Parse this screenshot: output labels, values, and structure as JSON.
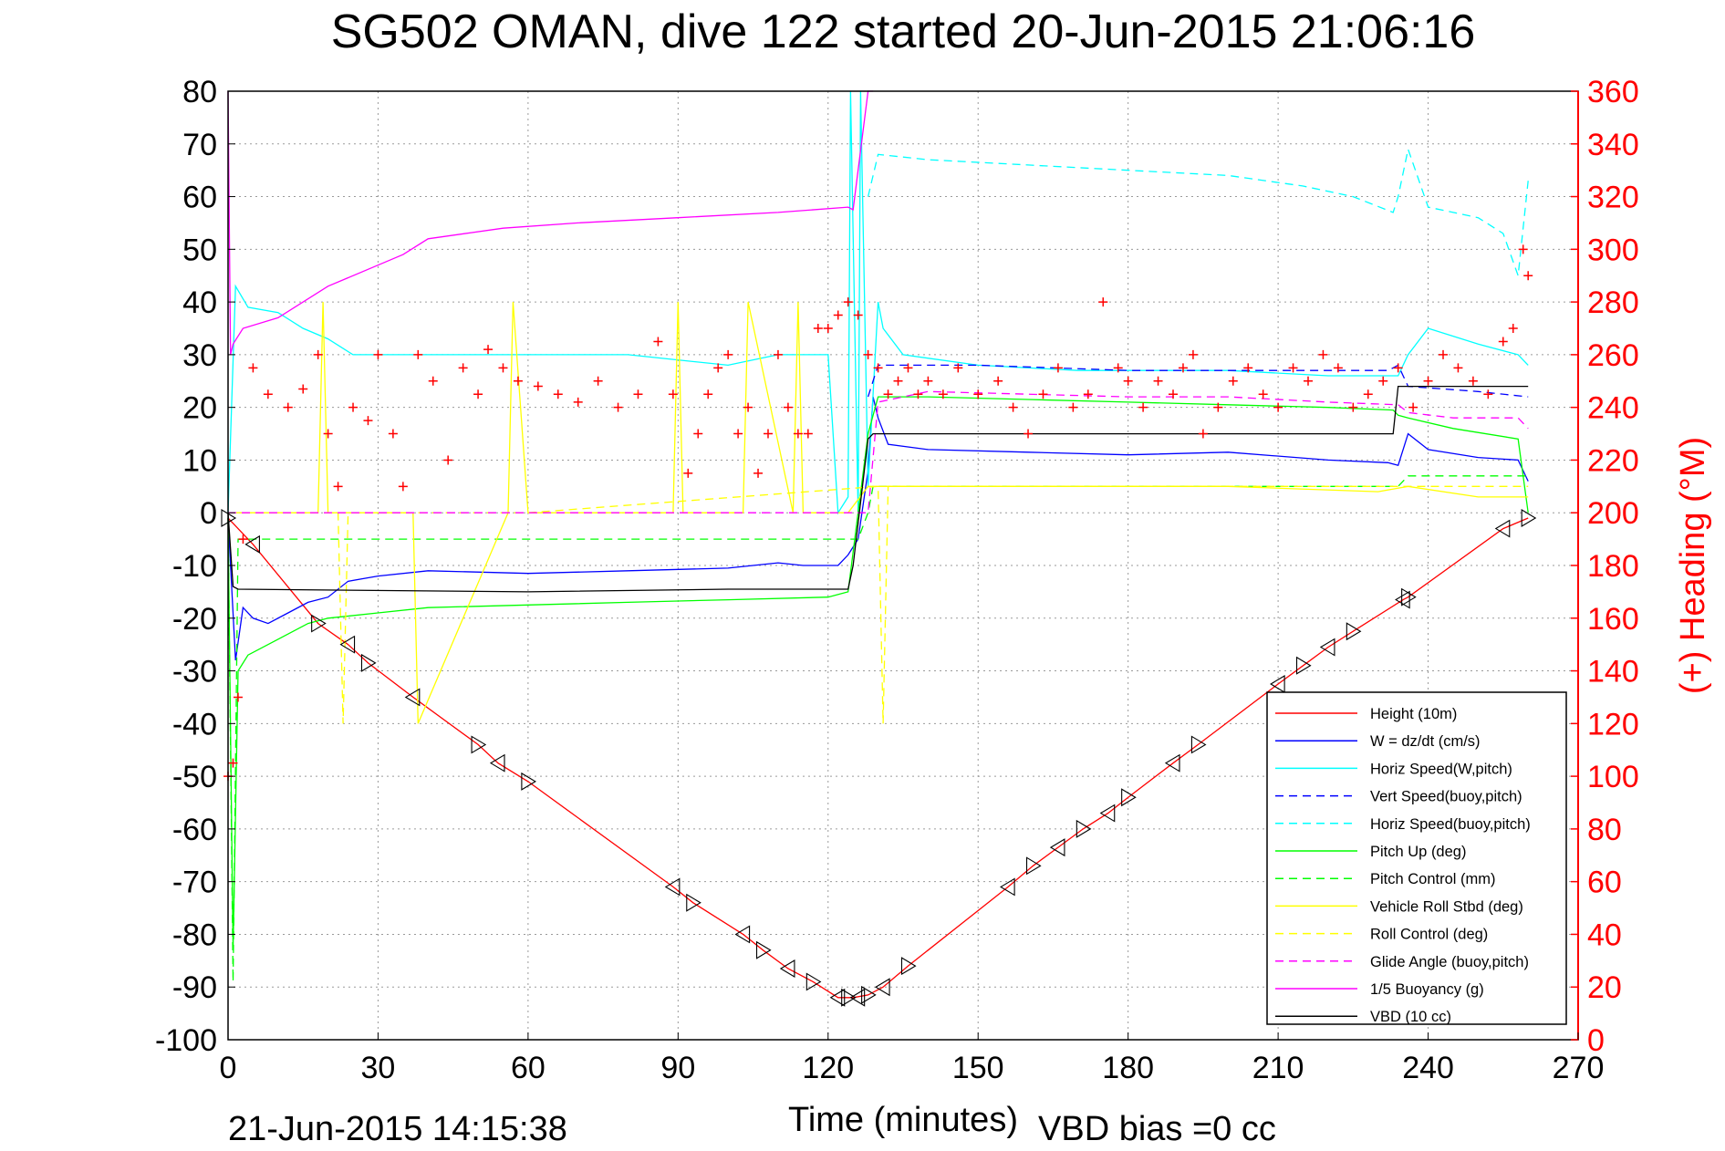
{
  "title": "SG502 OMAN, dive 122 started 20-Jun-2015 21:06:16",
  "footer_left": "21-Jun-2015 14:15:38",
  "footer_right": "VBD bias =0 cc",
  "chart_data": {
    "type": "line",
    "title": "SG502 OMAN, dive 122 started 20-Jun-2015 21:06:16",
    "xlabel": "Time (minutes)",
    "ylabel": "",
    "y2label": "(+) Heading (°M)",
    "xlim": [
      0,
      270
    ],
    "ylim": [
      -100,
      80
    ],
    "y2lim": [
      0,
      360
    ],
    "xticks": [
      "0",
      "30",
      "60",
      "90",
      "120",
      "150",
      "180",
      "210",
      "240",
      "270"
    ],
    "yticks": [
      "80",
      "70",
      "60",
      "50",
      "40",
      "30",
      "20",
      "10",
      "0",
      "-10",
      "-20",
      "-30",
      "-40",
      "-50",
      "-60",
      "-70",
      "-80",
      "-90",
      "-100"
    ],
    "y2ticks": [
      "360",
      "340",
      "320",
      "300",
      "280",
      "260",
      "240",
      "220",
      "200",
      "180",
      "160",
      "140",
      "120",
      "100",
      "80",
      "60",
      "40",
      "20",
      "0"
    ],
    "grid": true,
    "legend_position": "bottom-right",
    "legend": [
      {
        "label": "Height (10m)",
        "color": "#ff0000",
        "dash": "solid"
      },
      {
        "label": "W = dz/dt (cm/s)",
        "color": "#0000ff",
        "dash": "solid"
      },
      {
        "label": "Horiz Speed(W,pitch)",
        "color": "#00ffff",
        "dash": "solid"
      },
      {
        "label": "Vert Speed(buoy,pitch)",
        "color": "#0000ff",
        "dash": "dashed"
      },
      {
        "label": "Horiz Speed(buoy,pitch)",
        "color": "#00ffff",
        "dash": "dashed"
      },
      {
        "label": "Pitch Up (deg)",
        "color": "#00ff00",
        "dash": "solid"
      },
      {
        "label": "Pitch Control (mm)",
        "color": "#00ff00",
        "dash": "dashed"
      },
      {
        "label": "Vehicle Roll Stbd (deg)",
        "color": "#ffff00",
        "dash": "solid"
      },
      {
        "label": "Roll Control (deg)",
        "color": "#ffff00",
        "dash": "dashed"
      },
      {
        "label": "Glide Angle (buoy,pitch)",
        "color": "#ff00ff",
        "dash": "dashed"
      },
      {
        "label": "1/5 Buoyancy (g)",
        "color": "#ff00ff",
        "dash": "solid"
      },
      {
        "label": "VBD (10 cc)",
        "color": "#000000",
        "dash": "solid"
      }
    ],
    "series": [
      {
        "name": "Height (10m)",
        "color": "#ff0000",
        "axis": "left",
        "dash": "solid",
        "x": [
          0,
          5,
          18,
          24,
          28,
          37,
          50,
          54,
          60,
          89,
          93,
          103,
          107,
          112,
          117,
          122,
          125,
          128,
          131,
          136,
          156,
          161,
          166,
          171,
          176,
          180,
          189,
          194,
          210,
          215,
          220,
          225,
          235,
          236,
          255,
          260
        ],
        "y": [
          -1,
          -6,
          -21,
          -25,
          -28.5,
          -35,
          -44,
          -47.5,
          -51,
          -71,
          -74,
          -80,
          -83,
          -86.5,
          -89,
          -92,
          -92,
          -91.5,
          -90,
          -86,
          -71,
          -67,
          -63.5,
          -60,
          -57,
          -54,
          -47.5,
          -44,
          -32.5,
          -29,
          -25.5,
          -22.5,
          -16.5,
          -16,
          -3,
          -1
        ]
      },
      {
        "name": "W = dz/dt (cm/s)",
        "color": "#0000ff",
        "axis": "left",
        "dash": "solid",
        "x": [
          0,
          1.5,
          3,
          5,
          8,
          12,
          16,
          20,
          24,
          30,
          40,
          60,
          80,
          100,
          110,
          115,
          122,
          124,
          126,
          128,
          129,
          130,
          132,
          140,
          160,
          180,
          200,
          220,
          232,
          234,
          236,
          240,
          250,
          258,
          260
        ],
        "y": [
          -1,
          -28,
          -18,
          -20,
          -21,
          -19,
          -17,
          -16,
          -13,
          -12,
          -11,
          -11.5,
          -11,
          -10.5,
          -9.5,
          -10,
          -10,
          -8,
          -5,
          8,
          22,
          18,
          13,
          12,
          11.5,
          11,
          11.5,
          10,
          9.5,
          9,
          15,
          12,
          10.5,
          10,
          6
        ]
      },
      {
        "name": "Horiz Speed(W,pitch)",
        "color": "#00ffff",
        "axis": "left",
        "dash": "solid",
        "x": [
          0,
          1.5,
          4,
          10,
          15,
          20,
          25,
          30,
          45,
          60,
          80,
          100,
          110,
          120,
          122,
          124,
          124.5,
          126,
          126.5,
          128,
          130,
          131,
          135,
          150,
          170,
          200,
          220,
          230,
          234,
          236,
          240,
          250,
          258,
          260
        ],
        "y": [
          0,
          43,
          39,
          38,
          35,
          33,
          30,
          30,
          30,
          30,
          30,
          28,
          30,
          30,
          0,
          3,
          80,
          0,
          80,
          5,
          40,
          35,
          30,
          28,
          27,
          27,
          26,
          26,
          26,
          30,
          35,
          32,
          30,
          28
        ]
      },
      {
        "name": "Vert Speed(buoy,pitch)",
        "color": "#0000ff",
        "axis": "left",
        "dash": "dashed",
        "x": [
          128,
          130,
          150,
          180,
          210,
          232,
          234,
          236,
          250,
          260
        ],
        "y": [
          22,
          28,
          28,
          27,
          27,
          27,
          28,
          24,
          23,
          22
        ]
      },
      {
        "name": "Horiz Speed(buoy,pitch)",
        "color": "#00ffff",
        "axis": "left",
        "dash": "dashed",
        "x": [
          128,
          130,
          140,
          160,
          180,
          200,
          215,
          225,
          233,
          234,
          236,
          240,
          250,
          255,
          258,
          260
        ],
        "y": [
          60,
          68,
          67,
          66,
          65,
          64,
          62,
          60,
          57,
          60,
          69,
          58,
          56,
          53,
          45,
          63
        ]
      },
      {
        "name": "Pitch Up (deg)",
        "color": "#00ff00",
        "axis": "left",
        "dash": "solid",
        "x": [
          0,
          1,
          2,
          4,
          10,
          16,
          20,
          30,
          40,
          60,
          80,
          100,
          120,
          124,
          128,
          130,
          140,
          160,
          180,
          200,
          220,
          233,
          234,
          236,
          245,
          258,
          260
        ],
        "y": [
          -1,
          -83,
          -30,
          -27,
          -24,
          -21,
          -20,
          -19,
          -18,
          -17.5,
          -17,
          -16.5,
          -16,
          -15,
          15,
          22,
          22,
          21.5,
          21,
          20.5,
          20,
          19.5,
          18.5,
          18,
          16,
          14,
          0
        ]
      },
      {
        "name": "Pitch Control (mm)",
        "color": "#00ff00",
        "axis": "left",
        "dash": "dashed",
        "x": [
          0,
          1,
          2,
          3,
          60,
          123,
          126,
          128,
          129,
          230,
          234,
          236,
          260
        ],
        "y": [
          -1,
          -89,
          -5,
          -5,
          -5,
          -5,
          -5,
          0,
          5,
          5,
          5,
          7,
          7
        ]
      },
      {
        "name": "Vehicle Roll Stbd (deg)",
        "color": "#ffff00",
        "axis": "left",
        "dash": "solid",
        "x": [
          0,
          3,
          18,
          19,
          20,
          30,
          37,
          38,
          56,
          57,
          60,
          89,
          90,
          91,
          103,
          104,
          113,
          114,
          115,
          122,
          124,
          128,
          140,
          160,
          200,
          230,
          236,
          250,
          260
        ],
        "y": [
          0,
          0,
          0,
          40,
          0,
          0,
          0,
          -40,
          0,
          40,
          0,
          0,
          40,
          0,
          0,
          40,
          0,
          40,
          0,
          0,
          0,
          5,
          5,
          5,
          5,
          4,
          5,
          3,
          3
        ]
      },
      {
        "name": "Roll Control (deg)",
        "color": "#ffff00",
        "axis": "left",
        "dash": "dashed",
        "x": [
          0,
          3,
          22,
          23,
          24,
          60,
          130,
          131,
          132,
          200,
          260
        ],
        "y": [
          0,
          0,
          0,
          -40,
          0,
          0,
          5,
          -40,
          5,
          5,
          5
        ]
      },
      {
        "name": "Glide Angle (buoy,pitch)",
        "color": "#ff00ff",
        "axis": "left",
        "dash": "dashed",
        "x": [
          0,
          128,
          130,
          140,
          160,
          180,
          200,
          220,
          234,
          236,
          245,
          258,
          260
        ],
        "y": [
          0,
          0,
          21,
          23,
          22.5,
          22,
          22,
          21,
          20.5,
          19,
          18,
          18,
          16
        ]
      },
      {
        "name": "1/5 Buoyancy (g)",
        "color": "#ff00ff",
        "axis": "left",
        "dash": "solid",
        "x": [
          0,
          0.5,
          1,
          3,
          10,
          20,
          30,
          35,
          40,
          55,
          70,
          90,
          110,
          124,
          125,
          128,
          129
        ],
        "y": [
          80,
          30,
          32,
          35,
          37,
          43,
          47,
          49,
          52,
          54,
          55,
          56,
          57,
          58,
          57.5,
          80,
          80
        ]
      },
      {
        "name": "VBD (10 cc)",
        "color": "#000000",
        "axis": "left",
        "dash": "solid",
        "x": [
          0,
          1,
          2,
          60,
          100,
          124,
          125,
          128,
          129,
          130,
          200,
          233,
          234,
          258,
          259,
          260
        ],
        "y": [
          0,
          -14,
          -14.5,
          -15,
          -14.5,
          -14.5,
          -10,
          14,
          15,
          15,
          15,
          15,
          24,
          24,
          24,
          24
        ]
      },
      {
        "name": "(+) Heading (°M)",
        "color": "#ff0000",
        "axis": "right",
        "marker": "+",
        "x": [
          0,
          1,
          2,
          3,
          5,
          8,
          12,
          15,
          18,
          20,
          22,
          25,
          28,
          30,
          33,
          35,
          38,
          41,
          44,
          47,
          50,
          52,
          55,
          58,
          62,
          66,
          70,
          74,
          78,
          82,
          86,
          89,
          92,
          94,
          96,
          98,
          100,
          102,
          104,
          106,
          108,
          110,
          112,
          114,
          116,
          118,
          120,
          122,
          124,
          126,
          128,
          130,
          132,
          134,
          136,
          138,
          140,
          143,
          146,
          150,
          154,
          157,
          160,
          163,
          166,
          169,
          172,
          175,
          178,
          180,
          183,
          186,
          189,
          191,
          193,
          195,
          198,
          201,
          204,
          207,
          210,
          213,
          216,
          219,
          222,
          225,
          228,
          231,
          234,
          237,
          240,
          243,
          246,
          249,
          252,
          255,
          257,
          259,
          260
        ],
        "y": [
          100,
          105,
          130,
          190,
          255,
          245,
          240,
          247,
          260,
          230,
          210,
          240,
          235,
          260,
          230,
          210,
          260,
          250,
          220,
          255,
          245,
          262,
          255,
          250,
          248,
          245,
          242,
          250,
          240,
          245,
          265,
          245,
          215,
          230,
          245,
          255,
          260,
          230,
          240,
          215,
          230,
          260,
          240,
          230,
          230,
          270,
          270,
          275,
          280,
          275,
          260,
          255,
          245,
          250,
          255,
          245,
          250,
          245,
          255,
          245,
          250,
          240,
          230,
          245,
          255,
          240,
          245,
          280,
          255,
          250,
          240,
          250,
          245,
          255,
          260,
          230,
          240,
          250,
          255,
          245,
          240,
          255,
          250,
          260,
          255,
          240,
          245,
          250,
          255,
          240,
          250,
          260,
          255,
          250,
          245,
          265,
          270,
          300,
          290
        ]
      }
    ],
    "markers": {
      "label": "triangle markers along Height (10m)",
      "x": [
        0,
        5,
        18,
        24,
        28,
        37,
        50,
        54,
        60,
        89,
        93,
        103,
        107,
        112,
        117,
        122,
        124,
        126,
        128,
        131,
        136,
        156,
        161,
        166,
        171,
        176,
        180,
        189,
        194,
        210,
        215,
        220,
        225,
        235,
        236,
        255,
        260
      ],
      "y": [
        -1,
        -6,
        -21,
        -25,
        -28.5,
        -35,
        -44,
        -47.5,
        -51,
        -71,
        -74,
        -80,
        -83,
        -86.5,
        -89,
        -92,
        -92,
        -92,
        -91.5,
        -90,
        -86,
        -71,
        -67,
        -63.5,
        -60,
        -57,
        -54,
        -47.5,
        -44,
        -32.5,
        -29,
        -25.5,
        -22.5,
        -16.5,
        -16,
        -3,
        -1
      ]
    }
  }
}
